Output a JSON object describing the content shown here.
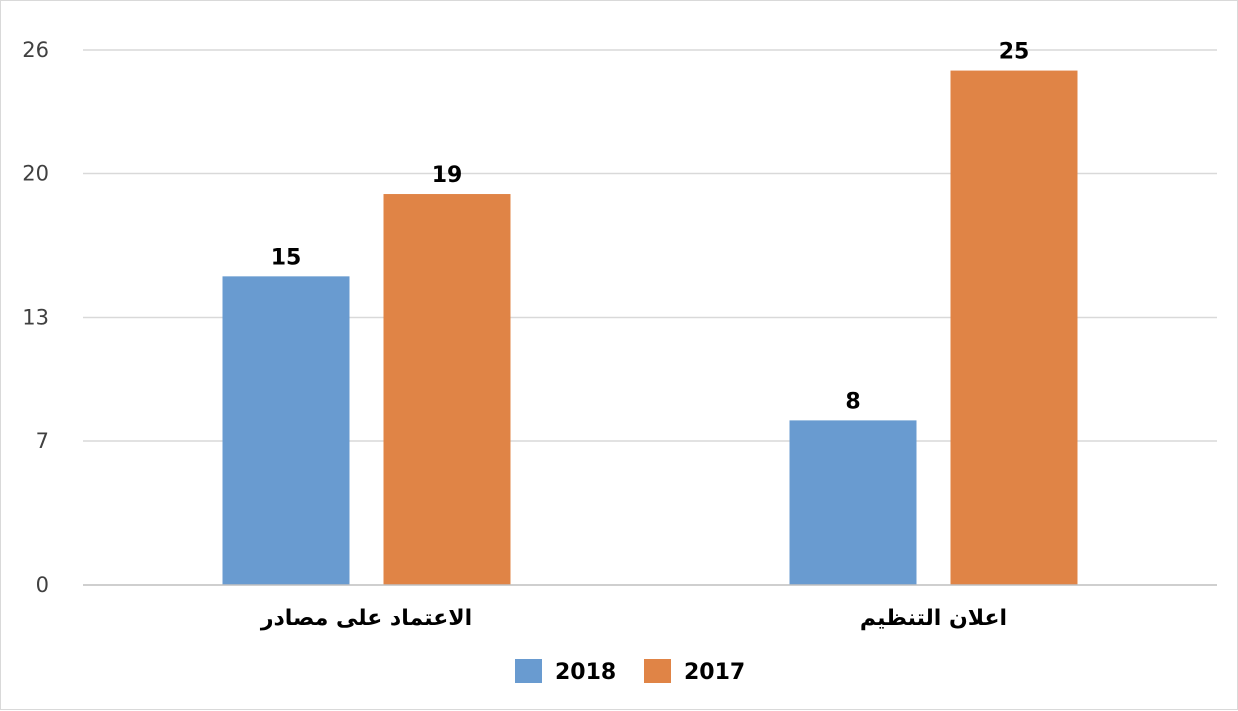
{
  "chart_data": {
    "type": "bar",
    "categories": [
      "الاعتماد على مصادر",
      "اعلان التنظيم"
    ],
    "series": [
      {
        "name": "2018",
        "values": [
          15,
          8
        ],
        "color": "#699bd0"
      },
      {
        "name": "2017",
        "values": [
          19,
          25
        ],
        "color": "#e08446"
      }
    ],
    "value_labels": [
      [
        "15",
        "8"
      ],
      [
        "19",
        "25"
      ]
    ],
    "y_ticks": [
      0,
      7,
      13,
      20,
      26
    ],
    "ylim": [
      0,
      26
    ],
    "grid": true,
    "legend_position": "bottom",
    "legend_order": [
      0,
      1
    ]
  }
}
